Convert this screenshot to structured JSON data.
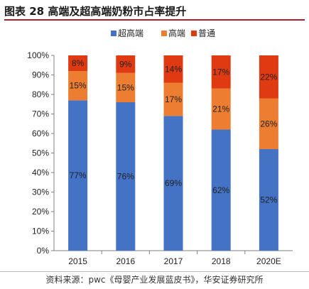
{
  "figure": {
    "title": "图表 28  高端及超高端奶粉市占率提升",
    "source": "资料来源：pwc《母婴产业发展蓝皮书》，华安证券研究所"
  },
  "chart_data": {
    "type": "bar",
    "stacked": true,
    "categories": [
      "2015",
      "2016",
      "2017",
      "2018",
      "2020E"
    ],
    "series": [
      {
        "name": "超高端",
        "color": "#4472c4",
        "values": [
          77,
          76,
          69,
          62,
          52
        ],
        "labels": [
          "77%",
          "76%",
          "69%",
          "62%",
          "52%"
        ]
      },
      {
        "name": "高端",
        "color": "#ed7d31",
        "values": [
          15,
          15,
          17,
          21,
          26
        ],
        "labels": [
          "15%",
          "15%",
          "17%",
          "21%",
          "26%"
        ]
      },
      {
        "name": "普通",
        "color": "#e03a12",
        "values": [
          8,
          9,
          14,
          17,
          22
        ],
        "labels": [
          "8%",
          "9%",
          "14%",
          "17%",
          "22%"
        ]
      }
    ],
    "ylim": [
      0,
      100
    ],
    "yticks": [
      "0%",
      "10%",
      "20%",
      "30%",
      "40%",
      "50%",
      "60%",
      "70%",
      "80%",
      "90%",
      "100%"
    ],
    "grid": false,
    "legend_position": "top-center"
  }
}
